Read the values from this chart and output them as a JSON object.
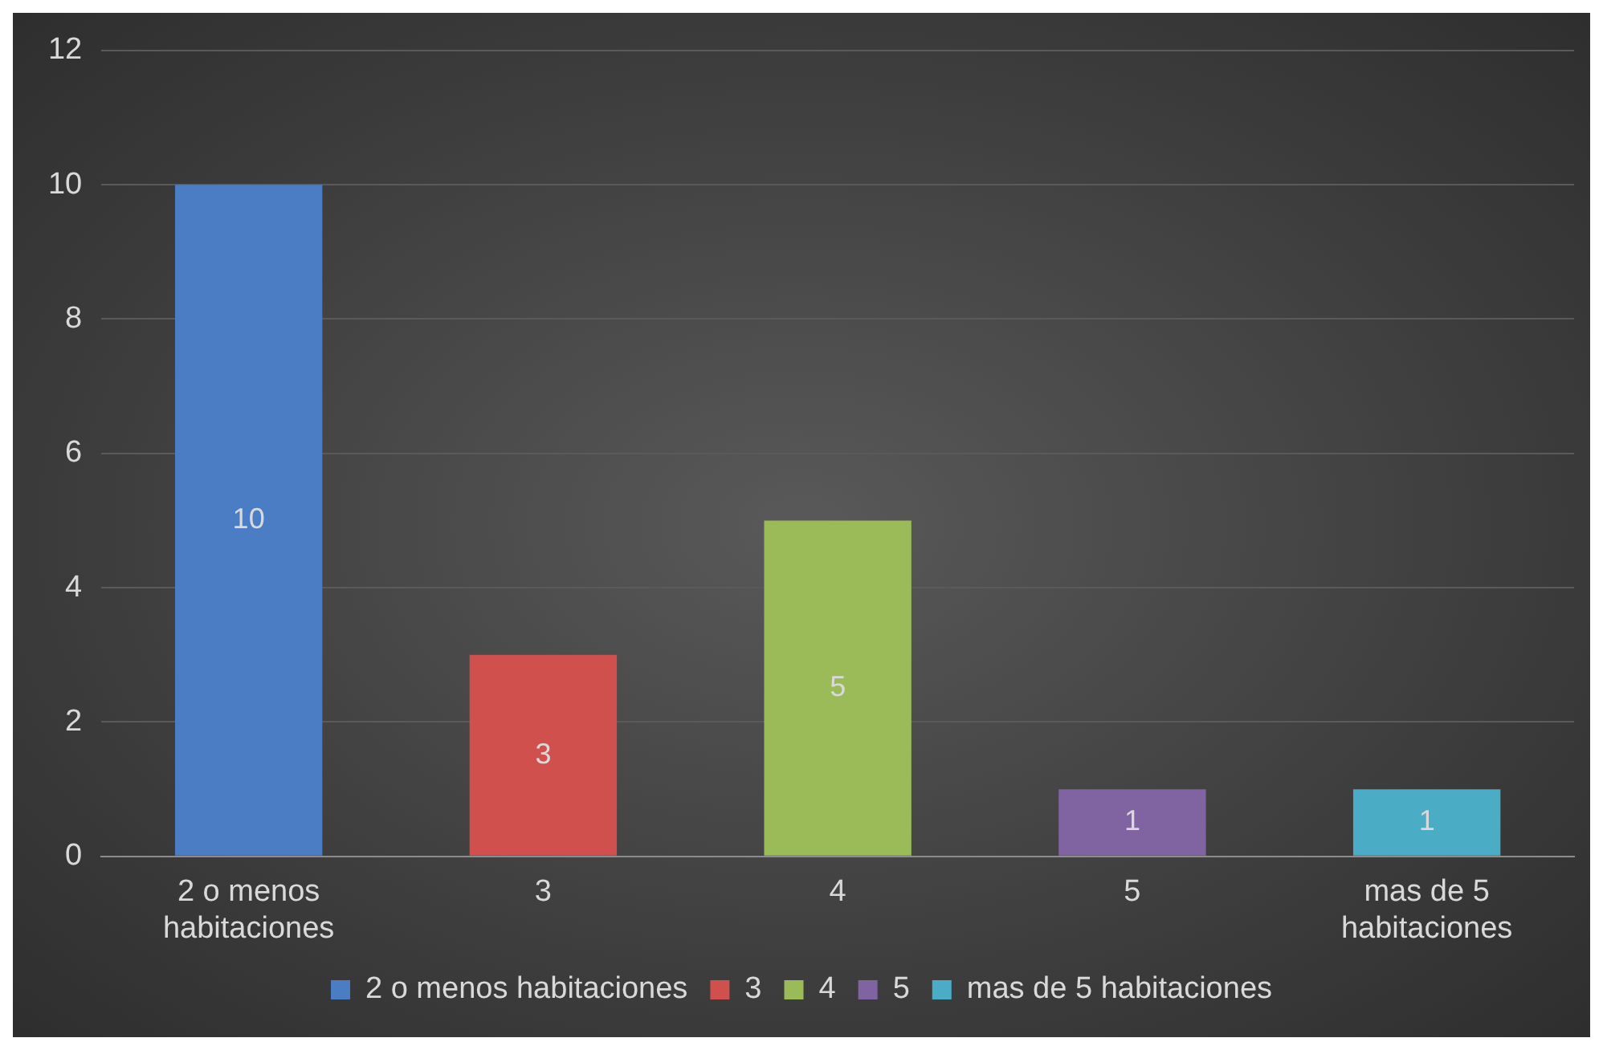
{
  "chart_data": {
    "type": "bar",
    "categories": [
      "2 o menos habitaciones",
      "3",
      "4",
      "5",
      "mas de 5 habitaciones"
    ],
    "series": [
      {
        "name": "2 o menos habitaciones",
        "color": "#4a7dc4",
        "values": [
          10,
          null,
          null,
          null,
          null
        ]
      },
      {
        "name": "3",
        "color": "#d0504d",
        "values": [
          null,
          3,
          null,
          null,
          null
        ]
      },
      {
        "name": "4",
        "color": "#9bbb59",
        "values": [
          null,
          null,
          5,
          null,
          null
        ]
      },
      {
        "name": "5",
        "color": "#8064a2",
        "values": [
          null,
          null,
          null,
          1,
          null
        ]
      },
      {
        "name": "mas de 5 habitaciones",
        "color": "#4bacc6",
        "values": [
          null,
          null,
          null,
          null,
          1
        ]
      }
    ],
    "ylim": [
      0,
      12
    ],
    "yticks": [
      0,
      2,
      4,
      6,
      8,
      10,
      12
    ],
    "grid": "y",
    "legend": "bottom",
    "data_labels": true
  }
}
